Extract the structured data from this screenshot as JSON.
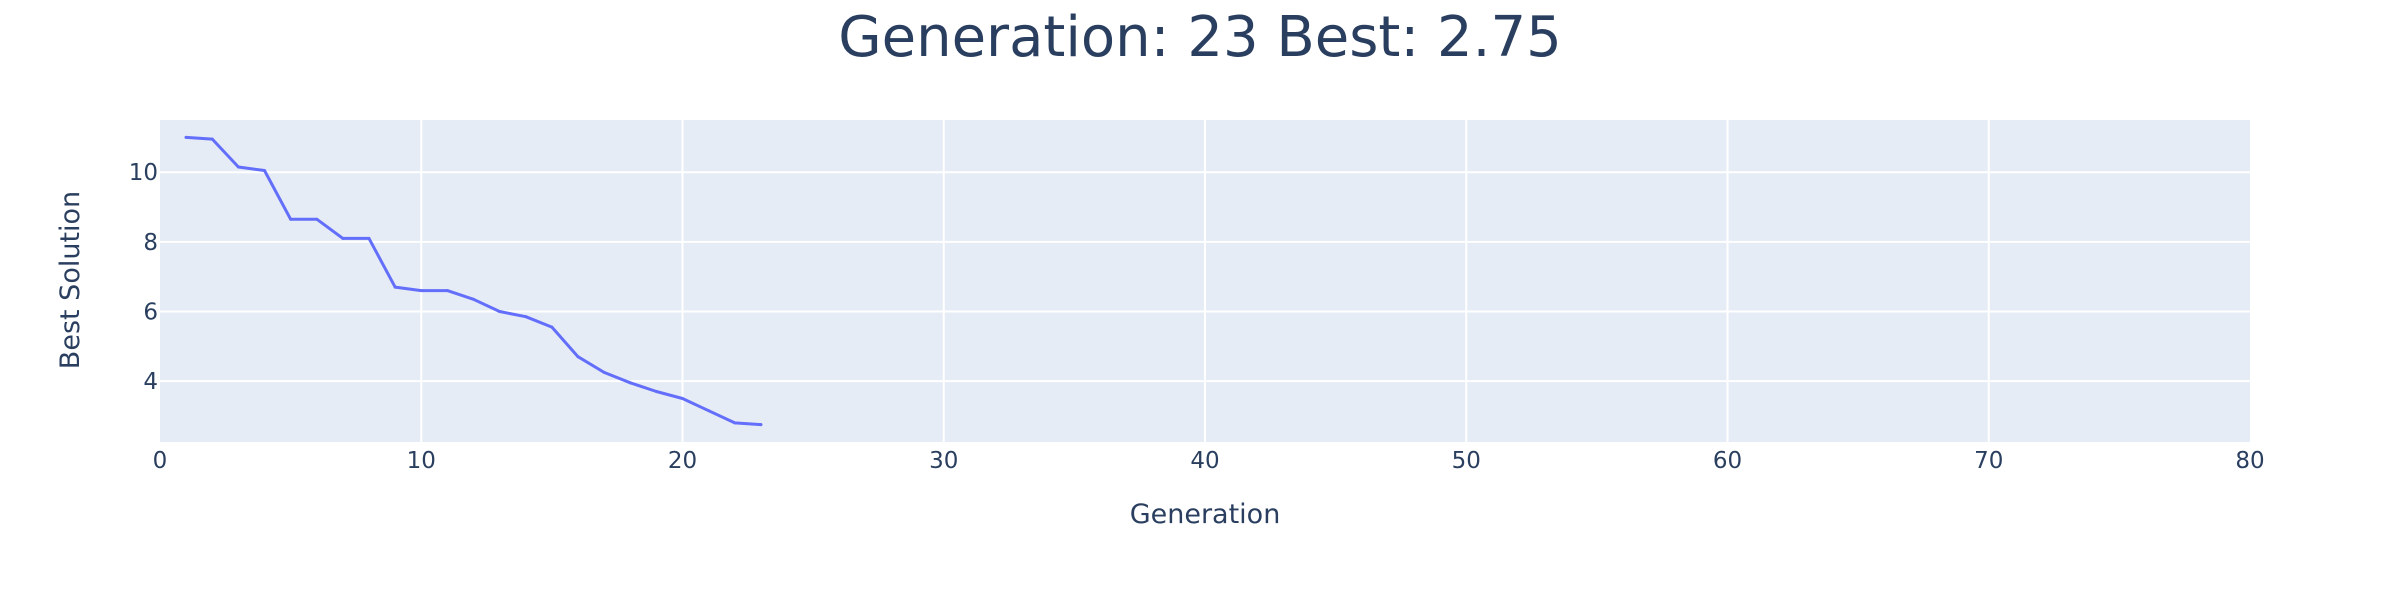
{
  "chart_data": {
    "type": "line",
    "title": "Generation: 23 Best: 2.75",
    "xlabel": "Generation",
    "ylabel": "Best Solution",
    "xlim": [
      0,
      80
    ],
    "ylim": [
      2.25,
      11.5
    ],
    "xticks": [
      0,
      10,
      20,
      30,
      40,
      50,
      60,
      70,
      80
    ],
    "yticks": [
      4,
      6,
      8,
      10
    ],
    "grid": true,
    "series": [
      {
        "color": "#636efa",
        "x": [
          1,
          2,
          3,
          4,
          5,
          6,
          7,
          8,
          9,
          10,
          11,
          12,
          13,
          14,
          15,
          16,
          17,
          18,
          19,
          20,
          21,
          22,
          23
        ],
        "y": [
          11.0,
          10.95,
          10.15,
          10.05,
          8.65,
          8.65,
          8.1,
          8.1,
          6.7,
          6.6,
          6.6,
          6.35,
          6.0,
          5.85,
          5.55,
          4.7,
          4.25,
          3.95,
          3.7,
          3.5,
          3.15,
          2.8,
          2.75
        ]
      }
    ],
    "colors": {
      "plot_background": "#e5ecf6",
      "grid": "#ffffff",
      "text": "#2a3f5f"
    }
  }
}
